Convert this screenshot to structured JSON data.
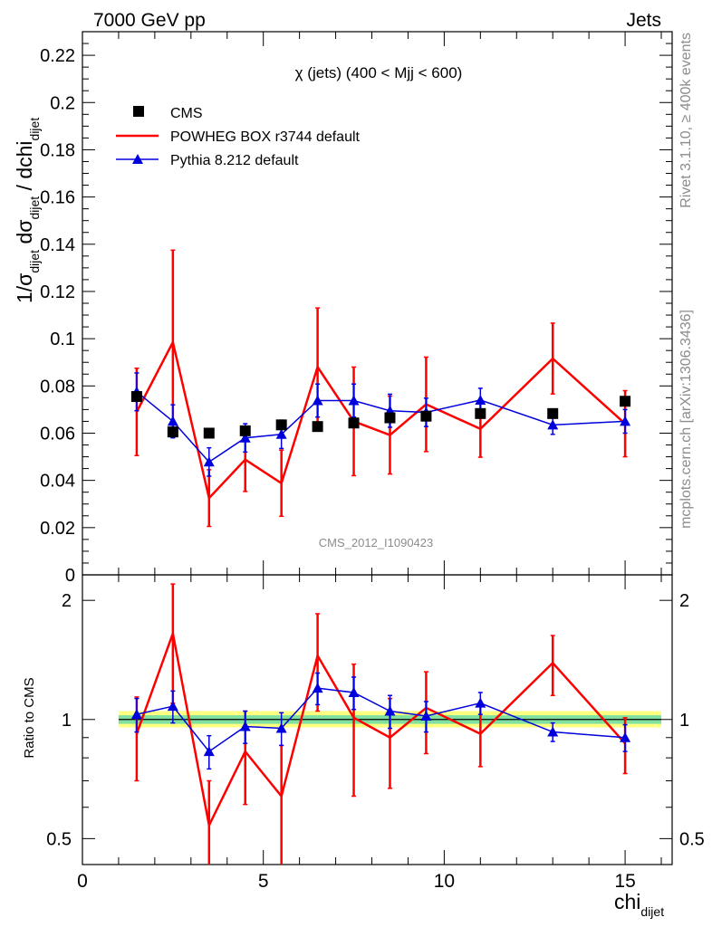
{
  "header": {
    "left": "7000 GeV pp",
    "right": "Jets"
  },
  "side_labels": {
    "rivet": "Rivet 3.1.10, ≥ 400k events",
    "mcplots": "mcplots.cern.ch [arXiv:1306.3436]"
  },
  "colors": {
    "cms": "#000000",
    "powheg": "#ff0000",
    "pythia": "#0000dd",
    "band_outer": "#ffff80",
    "band_inner": "#80e0a0"
  },
  "chart_data": [
    {
      "type": "line",
      "title": "χ (jets) (400 < Mjj <  600)",
      "analysis": "CMS_2012_I1090423",
      "ylabel": "1/σ_dijet dσ_dijet / dchi_dijet",
      "ylim": [
        0,
        0.23
      ],
      "xlim": [
        0,
        16.3
      ],
      "x": [
        1.5,
        2.5,
        3.5,
        4.5,
        5.5,
        6.5,
        7.5,
        8.5,
        9.5,
        11,
        13,
        15
      ],
      "yticks": [
        "0",
        "0.02",
        "0.04",
        "0.06",
        "0.08",
        "0.1",
        "0.12",
        "0.14",
        "0.16",
        "0.18",
        "0.2",
        "0.22"
      ],
      "series": [
        {
          "name": "CMS",
          "style": "markers-square",
          "values": [
            0.0755,
            0.0605,
            0.06,
            0.061,
            0.0635,
            0.0628,
            0.0643,
            0.0665,
            0.0672,
            0.0683,
            0.0683,
            0.0735
          ]
        },
        {
          "name": "POWHEG BOX r3744 default",
          "style": "line",
          "values": [
            0.069,
            0.0985,
            0.0325,
            0.0488,
            0.0388,
            0.088,
            0.065,
            0.0592,
            0.0722,
            0.0618,
            0.0916,
            0.064
          ],
          "err": [
            0.0185,
            0.039,
            0.012,
            0.0135,
            0.014,
            0.025,
            0.023,
            0.0165,
            0.02,
            0.012,
            0.015,
            0.014
          ]
        },
        {
          "name": "Pythia 8.212 default",
          "style": "line-triangle",
          "values": [
            0.0775,
            0.065,
            0.0478,
            0.058,
            0.0595,
            0.0738,
            0.0738,
            0.0695,
            0.0688,
            0.074,
            0.0635,
            0.065
          ],
          "err": [
            0.008,
            0.007,
            0.006,
            0.006,
            0.006,
            0.007,
            0.007,
            0.007,
            0.006,
            0.005,
            0.004,
            0.005
          ]
        }
      ]
    },
    {
      "type": "line",
      "ylabel": "Ratio to CMS",
      "xlabel": "chi_dijet",
      "ylog": true,
      "ylim": [
        0.43,
        2.32
      ],
      "xlim": [
        0,
        16.3
      ],
      "x": [
        1.5,
        2.5,
        3.5,
        4.5,
        5.5,
        6.5,
        7.5,
        8.5,
        9.5,
        11,
        13,
        15
      ],
      "yticks": [
        "0.5",
        "1",
        "2"
      ],
      "xticks": [
        "0",
        "5",
        "10",
        "15"
      ],
      "band": {
        "xrange": [
          1,
          16
        ],
        "outer": [
          0.955,
          1.05
        ],
        "inner": [
          0.975,
          1.025
        ]
      },
      "series": [
        {
          "name": "POWHEG BOX r3744 default",
          "values": [
            0.92,
            1.65,
            0.54,
            0.83,
            0.64,
            1.45,
            1.01,
            0.9,
            1.07,
            0.92,
            1.39,
            0.87
          ],
          "err": [
            0.22,
            0.55,
            0.16,
            0.22,
            0.22,
            0.4,
            0.37,
            0.23,
            0.25,
            0.16,
            0.24,
            0.14
          ]
        },
        {
          "name": "Pythia 8.212 default",
          "values": [
            1.03,
            1.08,
            0.83,
            0.96,
            0.95,
            1.2,
            1.17,
            1.05,
            1.02,
            1.1,
            0.93,
            0.9
          ],
          "err": [
            0.1,
            0.1,
            0.08,
            0.09,
            0.09,
            0.11,
            0.11,
            0.1,
            0.09,
            0.07,
            0.05,
            0.07
          ]
        }
      ]
    }
  ]
}
